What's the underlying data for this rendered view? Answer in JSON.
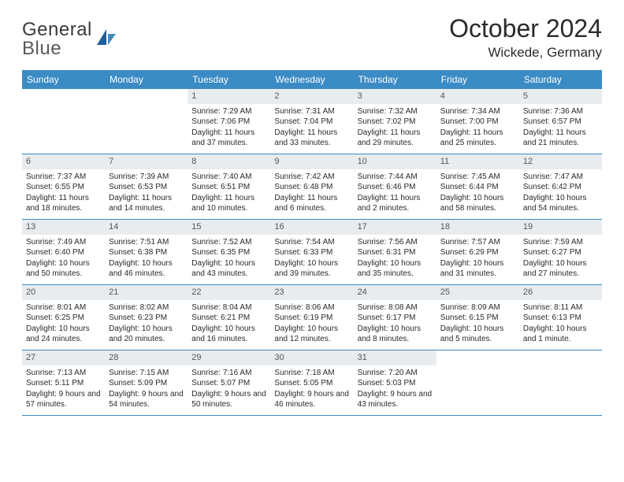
{
  "brand": {
    "part1": "General",
    "part2": "Blue"
  },
  "title": "October 2024",
  "location": "Wickede, Germany",
  "colors": {
    "header_bg": "#3b8bc4",
    "header_text": "#ffffff",
    "daynum_bg": "#e9ecef",
    "border": "#3b8bc4",
    "text": "#2a2a2a",
    "logo_gray": "#5a5a5a",
    "logo_blue": "#1e5fa0"
  },
  "weekdays": [
    "Sunday",
    "Monday",
    "Tuesday",
    "Wednesday",
    "Thursday",
    "Friday",
    "Saturday"
  ],
  "weeks": [
    [
      {
        "n": "",
        "sr": "",
        "ss": "",
        "dl": ""
      },
      {
        "n": "",
        "sr": "",
        "ss": "",
        "dl": ""
      },
      {
        "n": "1",
        "sr": "Sunrise: 7:29 AM",
        "ss": "Sunset: 7:06 PM",
        "dl": "Daylight: 11 hours and 37 minutes."
      },
      {
        "n": "2",
        "sr": "Sunrise: 7:31 AM",
        "ss": "Sunset: 7:04 PM",
        "dl": "Daylight: 11 hours and 33 minutes."
      },
      {
        "n": "3",
        "sr": "Sunrise: 7:32 AM",
        "ss": "Sunset: 7:02 PM",
        "dl": "Daylight: 11 hours and 29 minutes."
      },
      {
        "n": "4",
        "sr": "Sunrise: 7:34 AM",
        "ss": "Sunset: 7:00 PM",
        "dl": "Daylight: 11 hours and 25 minutes."
      },
      {
        "n": "5",
        "sr": "Sunrise: 7:36 AM",
        "ss": "Sunset: 6:57 PM",
        "dl": "Daylight: 11 hours and 21 minutes."
      }
    ],
    [
      {
        "n": "6",
        "sr": "Sunrise: 7:37 AM",
        "ss": "Sunset: 6:55 PM",
        "dl": "Daylight: 11 hours and 18 minutes."
      },
      {
        "n": "7",
        "sr": "Sunrise: 7:39 AM",
        "ss": "Sunset: 6:53 PM",
        "dl": "Daylight: 11 hours and 14 minutes."
      },
      {
        "n": "8",
        "sr": "Sunrise: 7:40 AM",
        "ss": "Sunset: 6:51 PM",
        "dl": "Daylight: 11 hours and 10 minutes."
      },
      {
        "n": "9",
        "sr": "Sunrise: 7:42 AM",
        "ss": "Sunset: 6:48 PM",
        "dl": "Daylight: 11 hours and 6 minutes."
      },
      {
        "n": "10",
        "sr": "Sunrise: 7:44 AM",
        "ss": "Sunset: 6:46 PM",
        "dl": "Daylight: 11 hours and 2 minutes."
      },
      {
        "n": "11",
        "sr": "Sunrise: 7:45 AM",
        "ss": "Sunset: 6:44 PM",
        "dl": "Daylight: 10 hours and 58 minutes."
      },
      {
        "n": "12",
        "sr": "Sunrise: 7:47 AM",
        "ss": "Sunset: 6:42 PM",
        "dl": "Daylight: 10 hours and 54 minutes."
      }
    ],
    [
      {
        "n": "13",
        "sr": "Sunrise: 7:49 AM",
        "ss": "Sunset: 6:40 PM",
        "dl": "Daylight: 10 hours and 50 minutes."
      },
      {
        "n": "14",
        "sr": "Sunrise: 7:51 AM",
        "ss": "Sunset: 6:38 PM",
        "dl": "Daylight: 10 hours and 46 minutes."
      },
      {
        "n": "15",
        "sr": "Sunrise: 7:52 AM",
        "ss": "Sunset: 6:35 PM",
        "dl": "Daylight: 10 hours and 43 minutes."
      },
      {
        "n": "16",
        "sr": "Sunrise: 7:54 AM",
        "ss": "Sunset: 6:33 PM",
        "dl": "Daylight: 10 hours and 39 minutes."
      },
      {
        "n": "17",
        "sr": "Sunrise: 7:56 AM",
        "ss": "Sunset: 6:31 PM",
        "dl": "Daylight: 10 hours and 35 minutes."
      },
      {
        "n": "18",
        "sr": "Sunrise: 7:57 AM",
        "ss": "Sunset: 6:29 PM",
        "dl": "Daylight: 10 hours and 31 minutes."
      },
      {
        "n": "19",
        "sr": "Sunrise: 7:59 AM",
        "ss": "Sunset: 6:27 PM",
        "dl": "Daylight: 10 hours and 27 minutes."
      }
    ],
    [
      {
        "n": "20",
        "sr": "Sunrise: 8:01 AM",
        "ss": "Sunset: 6:25 PM",
        "dl": "Daylight: 10 hours and 24 minutes."
      },
      {
        "n": "21",
        "sr": "Sunrise: 8:02 AM",
        "ss": "Sunset: 6:23 PM",
        "dl": "Daylight: 10 hours and 20 minutes."
      },
      {
        "n": "22",
        "sr": "Sunrise: 8:04 AM",
        "ss": "Sunset: 6:21 PM",
        "dl": "Daylight: 10 hours and 16 minutes."
      },
      {
        "n": "23",
        "sr": "Sunrise: 8:06 AM",
        "ss": "Sunset: 6:19 PM",
        "dl": "Daylight: 10 hours and 12 minutes."
      },
      {
        "n": "24",
        "sr": "Sunrise: 8:08 AM",
        "ss": "Sunset: 6:17 PM",
        "dl": "Daylight: 10 hours and 8 minutes."
      },
      {
        "n": "25",
        "sr": "Sunrise: 8:09 AM",
        "ss": "Sunset: 6:15 PM",
        "dl": "Daylight: 10 hours and 5 minutes."
      },
      {
        "n": "26",
        "sr": "Sunrise: 8:11 AM",
        "ss": "Sunset: 6:13 PM",
        "dl": "Daylight: 10 hours and 1 minute."
      }
    ],
    [
      {
        "n": "27",
        "sr": "Sunrise: 7:13 AM",
        "ss": "Sunset: 5:11 PM",
        "dl": "Daylight: 9 hours and 57 minutes."
      },
      {
        "n": "28",
        "sr": "Sunrise: 7:15 AM",
        "ss": "Sunset: 5:09 PM",
        "dl": "Daylight: 9 hours and 54 minutes."
      },
      {
        "n": "29",
        "sr": "Sunrise: 7:16 AM",
        "ss": "Sunset: 5:07 PM",
        "dl": "Daylight: 9 hours and 50 minutes."
      },
      {
        "n": "30",
        "sr": "Sunrise: 7:18 AM",
        "ss": "Sunset: 5:05 PM",
        "dl": "Daylight: 9 hours and 46 minutes."
      },
      {
        "n": "31",
        "sr": "Sunrise: 7:20 AM",
        "ss": "Sunset: 5:03 PM",
        "dl": "Daylight: 9 hours and 43 minutes."
      },
      {
        "n": "",
        "sr": "",
        "ss": "",
        "dl": ""
      },
      {
        "n": "",
        "sr": "",
        "ss": "",
        "dl": ""
      }
    ]
  ]
}
